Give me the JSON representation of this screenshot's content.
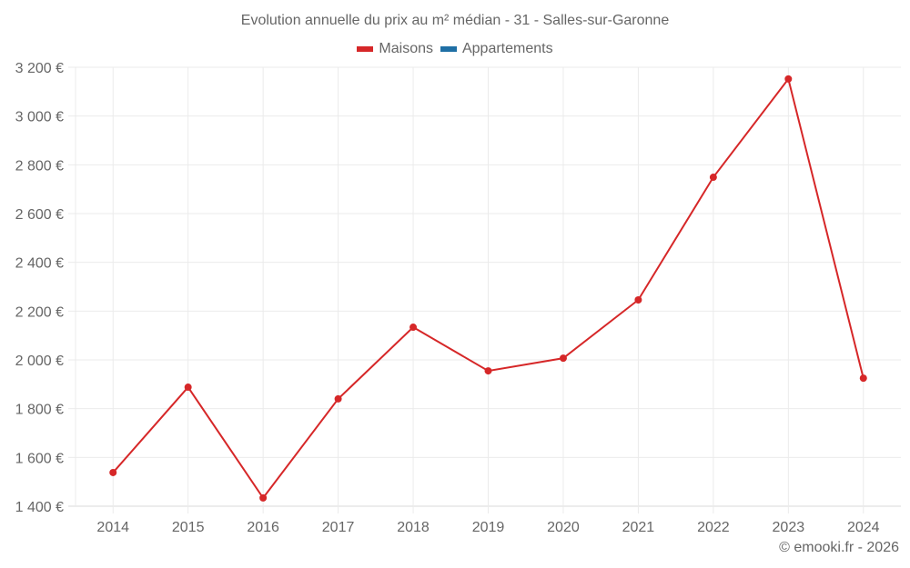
{
  "chart_data": {
    "type": "line",
    "title": "Evolution annuelle du prix au m² médian - 31 - Salles-sur-Garonne",
    "xlabel": "",
    "ylabel": "",
    "categories": [
      "2014",
      "2015",
      "2016",
      "2017",
      "2018",
      "2019",
      "2020",
      "2021",
      "2022",
      "2023",
      "2024"
    ],
    "series": [
      {
        "name": "Maisons",
        "color": "#d62728",
        "values": [
          1538,
          1888,
          1434,
          1840,
          2134,
          1955,
          2007,
          2246,
          2749,
          3152,
          1925
        ]
      },
      {
        "name": "Appartements",
        "color": "#1f6fa5",
        "values": []
      }
    ],
    "ylim": [
      1400,
      3200
    ],
    "yticks": [
      1400,
      1600,
      1800,
      2000,
      2200,
      2400,
      2600,
      2800,
      3000,
      3200
    ],
    "ytick_labels": [
      "1 400 €",
      "1 600 €",
      "1 800 €",
      "2 000 €",
      "2 200 €",
      "2 400 €",
      "2 600 €",
      "2 800 €",
      "3 000 €",
      "3 200 €"
    ],
    "grid": true,
    "legend_position": "top"
  },
  "legend": [
    {
      "label": "Maisons",
      "color": "#d62728"
    },
    {
      "label": "Appartements",
      "color": "#1f6fa5"
    }
  ],
  "credit": "© emooki.fr - 2026"
}
